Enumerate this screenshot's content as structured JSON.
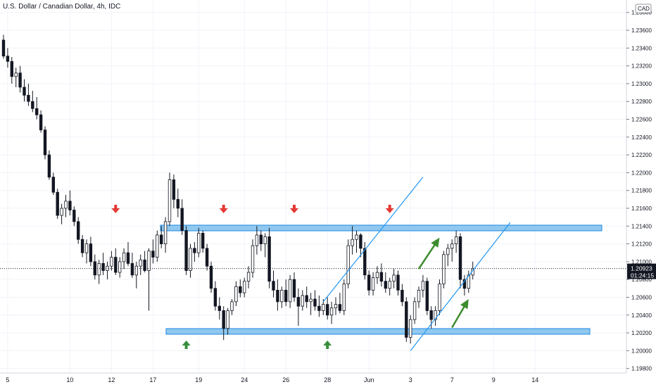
{
  "header": {
    "title": "U.S. Dollar / Canadian Dollar, 4h, IDC",
    "currency_badge": "CAD"
  },
  "price_badge": {
    "price": "1.20923",
    "countdown": "01:24:15"
  },
  "colors": {
    "candle": "#131722",
    "zone_fill": "#90c8ef",
    "zone_border": "#1e88e5",
    "channel": "#2196f3",
    "arrow_up": "#388e3c",
    "arrow_down": "#e53935",
    "trend_arrow": "#3d8c2f",
    "grid": "#f0f3fa"
  },
  "chart_data": {
    "type": "candlestick",
    "title": "U.S. Dollar / Canadian Dollar, 4h, IDC",
    "ylim": [
      1.1975,
      1.2394
    ],
    "y_ticks": [
      "1.19800",
      "1.20000",
      "1.20200",
      "1.20400",
      "1.20600",
      "1.20800",
      "1.21000",
      "1.21200",
      "1.21400",
      "1.21600",
      "1.21800",
      "1.22000",
      "1.22200",
      "1.22400",
      "1.22600",
      "1.22800",
      "1.23000",
      "1.23200",
      "1.23400",
      "1.23600",
      "1.23800"
    ],
    "x_ticks": [
      "5",
      "10",
      "12",
      "17",
      "19",
      "24",
      "26",
      "28",
      "Jun",
      "3",
      "7",
      "9",
      "14"
    ],
    "last_price": 1.20923,
    "candles": [
      [
        1.2349,
        1.2355,
        1.2328,
        1.2331
      ],
      [
        1.2331,
        1.234,
        1.2318,
        1.2325
      ],
      [
        1.2325,
        1.233,
        1.23,
        1.2308
      ],
      [
        1.2308,
        1.2318,
        1.2296,
        1.2312
      ],
      [
        1.2312,
        1.232,
        1.229,
        1.2296
      ],
      [
        1.2296,
        1.2305,
        1.228,
        1.2287
      ],
      [
        1.2287,
        1.23,
        1.2275,
        1.228
      ],
      [
        1.228,
        1.2292,
        1.2268,
        1.2272
      ],
      [
        1.2272,
        1.2285,
        1.226,
        1.2265
      ],
      [
        1.2265,
        1.227,
        1.2245,
        1.2248
      ],
      [
        1.2248,
        1.2252,
        1.2215,
        1.222
      ],
      [
        1.222,
        1.2225,
        1.2192,
        1.2195
      ],
      [
        1.2195,
        1.22,
        1.2175,
        1.2178
      ],
      [
        1.2178,
        1.2182,
        1.2148,
        1.2152
      ],
      [
        1.2152,
        1.2165,
        1.2142,
        1.216
      ],
      [
        1.216,
        1.2175,
        1.215,
        1.2168
      ],
      [
        1.2168,
        1.218,
        1.2152,
        1.2158
      ],
      [
        1.2158,
        1.2162,
        1.214,
        1.2145
      ],
      [
        1.2145,
        1.215,
        1.212,
        1.2125
      ],
      [
        1.2125,
        1.213,
        1.2105,
        1.211
      ],
      [
        1.211,
        1.2125,
        1.2098,
        1.212
      ],
      [
        1.212,
        1.2128,
        1.2095,
        1.21
      ],
      [
        1.21,
        1.2108,
        1.208,
        1.2085
      ],
      [
        1.2085,
        1.2102,
        1.2075,
        1.2098
      ],
      [
        1.2098,
        1.211,
        1.2085,
        1.209
      ],
      [
        1.209,
        1.21,
        1.208,
        1.2095
      ],
      [
        1.2095,
        1.2112,
        1.209,
        1.2105
      ],
      [
        1.2105,
        1.2115,
        1.2085,
        1.2088
      ],
      [
        1.2088,
        1.2105,
        1.2082,
        1.21
      ],
      [
        1.21,
        1.2115,
        1.2092,
        1.211
      ],
      [
        1.211,
        1.2122,
        1.2095,
        1.2098
      ],
      [
        1.2098,
        1.211,
        1.2082,
        1.2085
      ],
      [
        1.2085,
        1.21,
        1.207,
        1.2095
      ],
      [
        1.2095,
        1.2108,
        1.2085,
        1.2102
      ],
      [
        1.2102,
        1.2112,
        1.2088,
        1.209
      ],
      [
        1.209,
        1.2115,
        1.2045,
        1.2112
      ],
      [
        1.2112,
        1.2125,
        1.2098,
        1.2105
      ],
      [
        1.2105,
        1.2135,
        1.21,
        1.213
      ],
      [
        1.213,
        1.214,
        1.2115,
        1.212
      ],
      [
        1.212,
        1.215,
        1.211,
        1.2145
      ],
      [
        1.2145,
        1.22,
        1.214,
        1.2192
      ],
      [
        1.2192,
        1.2198,
        1.216,
        1.217
      ],
      [
        1.217,
        1.2182,
        1.215,
        1.216
      ],
      [
        1.216,
        1.217,
        1.213,
        1.2135
      ],
      [
        1.2135,
        1.214,
        1.2085,
        1.209
      ],
      [
        1.209,
        1.212,
        1.2082,
        1.2115
      ],
      [
        1.2115,
        1.2122,
        1.21,
        1.211
      ],
      [
        1.211,
        1.2138,
        1.2105,
        1.2132
      ],
      [
        1.2132,
        1.2135,
        1.211,
        1.2115
      ],
      [
        1.2115,
        1.212,
        1.209,
        1.2095
      ],
      [
        1.2095,
        1.21,
        1.2065,
        1.207
      ],
      [
        1.207,
        1.2078,
        1.2045,
        1.205
      ],
      [
        1.205,
        1.206,
        1.2035,
        1.2045
      ],
      [
        1.2045,
        1.205,
        1.2012,
        1.2025
      ],
      [
        1.2025,
        1.2048,
        1.2018,
        1.2045
      ],
      [
        1.2045,
        1.2058,
        1.204,
        1.2055
      ],
      [
        1.2055,
        1.2078,
        1.205,
        1.2072
      ],
      [
        1.2072,
        1.208,
        1.206,
        1.2065
      ],
      [
        1.2065,
        1.2082,
        1.206,
        1.2078
      ],
      [
        1.2078,
        1.2095,
        1.207,
        1.2088
      ],
      [
        1.2088,
        1.2125,
        1.2082,
        1.2118
      ],
      [
        1.2118,
        1.214,
        1.2108,
        1.213
      ],
      [
        1.213,
        1.2135,
        1.2112,
        1.212
      ],
      [
        1.212,
        1.2132,
        1.2105,
        1.2128
      ],
      [
        1.2128,
        1.2138,
        1.207,
        1.2078
      ],
      [
        1.2078,
        1.209,
        1.206,
        1.2068
      ],
      [
        1.2068,
        1.208,
        1.2045,
        1.2055
      ],
      [
        1.2055,
        1.2072,
        1.2048,
        1.2068
      ],
      [
        1.2068,
        1.208,
        1.205,
        1.2055
      ],
      [
        1.2055,
        1.2085,
        1.2048,
        1.208
      ],
      [
        1.208,
        1.2088,
        1.2055,
        1.206
      ],
      [
        1.206,
        1.207,
        1.2028,
        1.205
      ],
      [
        1.205,
        1.2068,
        1.2045,
        1.2062
      ],
      [
        1.2062,
        1.2072,
        1.2048,
        1.2055
      ],
      [
        1.2055,
        1.2065,
        1.204,
        1.2058
      ],
      [
        1.2058,
        1.2068,
        1.2045,
        1.205
      ],
      [
        1.205,
        1.2062,
        1.2038,
        1.2045
      ],
      [
        1.2045,
        1.2058,
        1.204,
        1.2052
      ],
      [
        1.2052,
        1.206,
        1.2035,
        1.204
      ],
      [
        1.204,
        1.2055,
        1.203,
        1.2048
      ],
      [
        1.2048,
        1.206,
        1.204,
        1.2052
      ],
      [
        1.2052,
        1.2065,
        1.2042,
        1.2045
      ],
      [
        1.2045,
        1.208,
        1.204,
        1.2075
      ],
      [
        1.2075,
        1.2125,
        1.207,
        1.2118
      ],
      [
        1.2118,
        1.214,
        1.2108,
        1.2125
      ],
      [
        1.2125,
        1.2135,
        1.211,
        1.213
      ],
      [
        1.213,
        1.2132,
        1.2105,
        1.2115
      ],
      [
        1.2115,
        1.2122,
        1.208,
        1.2085
      ],
      [
        1.2085,
        1.209,
        1.2062,
        1.2068
      ],
      [
        1.2068,
        1.2088,
        1.2062,
        1.2082
      ],
      [
        1.2082,
        1.2095,
        1.2075,
        1.2088
      ],
      [
        1.2088,
        1.2098,
        1.2072,
        1.2078
      ],
      [
        1.2078,
        1.2088,
        1.2065,
        1.207
      ],
      [
        1.207,
        1.2082,
        1.2062,
        1.2078
      ],
      [
        1.2078,
        1.2092,
        1.207,
        1.2085
      ],
      [
        1.2085,
        1.209,
        1.2062,
        1.2068
      ],
      [
        1.2068,
        1.2075,
        1.205,
        1.2055
      ],
      [
        1.2055,
        1.206,
        1.201,
        1.2015
      ],
      [
        1.2015,
        1.204,
        1.2008,
        1.2035
      ],
      [
        1.2035,
        1.206,
        1.203,
        1.2055
      ],
      [
        1.2055,
        1.2072,
        1.2048,
        1.2068
      ],
      [
        1.2068,
        1.2085,
        1.206,
        1.2078
      ],
      [
        1.2078,
        1.2082,
        1.204,
        1.2045
      ],
      [
        1.2045,
        1.205,
        1.2025,
        1.2035
      ],
      [
        1.2035,
        1.205,
        1.2028,
        1.2045
      ],
      [
        1.2045,
        1.208,
        1.204,
        1.2075
      ],
      [
        1.2075,
        1.2112,
        1.207,
        1.2108
      ],
      [
        1.2108,
        1.212,
        1.2095,
        1.2115
      ],
      [
        1.2115,
        1.2125,
        1.21,
        1.212
      ],
      [
        1.212,
        1.2135,
        1.211,
        1.2128
      ],
      [
        1.2128,
        1.2132,
        1.207,
        1.208
      ],
      [
        1.208,
        1.2085,
        1.2062,
        1.207
      ],
      [
        1.207,
        1.209,
        1.2065,
        1.2085
      ],
      [
        1.2085,
        1.21,
        1.208,
        1.2092
      ]
    ]
  },
  "annotations": {
    "resistance_zone": [
      1.2131,
      1.2136
    ],
    "support_zone": [
      1.2012,
      1.2017
    ],
    "down_arrow_candles": [
      27,
      53,
      70,
      93
    ],
    "up_arrow_candles": [
      44,
      78
    ],
    "channel_upper": [
      [
        77,
        1.2055
      ],
      [
        101,
        1.2195
      ]
    ],
    "channel_lower": [
      [
        98,
        1.2
      ],
      [
        122,
        1.2144
      ]
    ],
    "trend_arrows": [
      [
        [
          100,
          1.2092
        ],
        [
          105,
          1.2127
        ]
      ],
      [
        [
          108,
          1.2026
        ],
        [
          112,
          1.2058
        ]
      ]
    ],
    "x_tick_candles": [
      1,
      16,
      26,
      36,
      47,
      58,
      68,
      78,
      88,
      98,
      108,
      118,
      128
    ]
  }
}
